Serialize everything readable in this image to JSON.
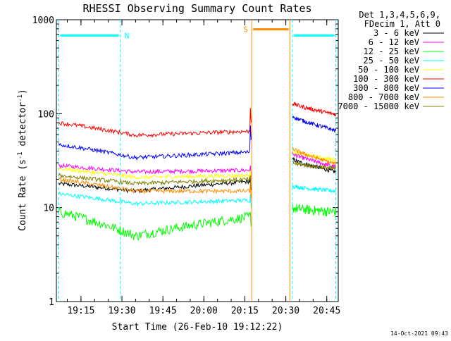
{
  "chart_data": {
    "type": "line",
    "title": "RHESSI Observing Summary Count Rates",
    "xlabel": "Start Time (26-Feb-10 19:12:22)",
    "ylabel": "Count Rate (s",
    "ylabel_sup1": "-1",
    "ylabel_mid": " detector",
    "ylabel_sup2": "-1",
    "ylabel_end": ")",
    "yscale": "log",
    "xlim_minutes": [
      19.1,
      20.82
    ],
    "ylim": [
      1,
      1000
    ],
    "x_ticks": [
      "19:15",
      "19:30",
      "19:45",
      "20:00",
      "20:15",
      "20:30",
      "20:45"
    ],
    "x_tick_values": [
      19.25,
      19.5,
      19.75,
      20.0,
      20.25,
      20.5,
      20.75
    ],
    "y_ticks": [
      "1",
      "10",
      "100",
      "1000"
    ],
    "y_tick_values": [
      1,
      10,
      100,
      1000
    ],
    "legend_header": [
      "Det 1,3,4,5,6,9,",
      "FDecim 1, Att 0"
    ],
    "legend_position": "right",
    "footer_date": "14-Oct-2021 09:43",
    "series": [
      {
        "name": "3 - 6 keV",
        "color": "#000000",
        "seg1": {
          "start": 18,
          "min": 15,
          "end": 19,
          "spike": 22
        },
        "seg2": {
          "start": 33,
          "end": 24
        }
      },
      {
        "name": "6 - 12 keV",
        "color": "#ff00ff",
        "seg1": {
          "start": 28,
          "min": 24,
          "end": 25,
          "spike": 28
        },
        "seg2": {
          "start": 38,
          "end": 27
        }
      },
      {
        "name": "12 - 25 keV",
        "color": "#00ff00",
        "seg1": {
          "start": 9,
          "min": 5,
          "end": 8,
          "spike": 9
        },
        "seg2": {
          "start": 10,
          "end": 9
        }
      },
      {
        "name": "25 - 50 keV",
        "color": "#00ffff",
        "seg1": {
          "start": 14,
          "min": 11,
          "end": 12,
          "spike": 14
        },
        "seg2": {
          "start": 17,
          "end": 15
        }
      },
      {
        "name": "50 - 100 keV",
        "color": "#ffff00",
        "seg1": {
          "start": 26,
          "min": 21,
          "end": 22,
          "spike": 25
        },
        "seg2": {
          "start": 40,
          "end": 32
        }
      },
      {
        "name": "100 - 300 keV",
        "color": "#ff0000",
        "seg1": {
          "start": 80,
          "min": 59,
          "end": 65,
          "spike": 115
        },
        "seg2": {
          "start": 130,
          "end": 98
        }
      },
      {
        "name": "300 - 800 keV",
        "color": "#0000ff",
        "seg1": {
          "start": 47,
          "min": 34,
          "end": 39,
          "spike": 75
        },
        "seg2": {
          "start": 95,
          "end": 66
        }
      },
      {
        "name": "800 - 7000 keV",
        "color": "#ff8c00",
        "seg1": {
          "start": 20,
          "min": 15,
          "end": 15,
          "spike": 18
        },
        "seg2": {
          "start": 43,
          "end": 29
        }
      },
      {
        "name": "7000 - 15000 keV",
        "color": "#808000",
        "seg1": {
          "start": 22,
          "min": 18,
          "end": 20,
          "spike": 22
        },
        "seg2": {
          "start": 30,
          "end": 26
        }
      }
    ],
    "annotations": [
      {
        "label": "N",
        "meaning": "night",
        "color": "#00ffff",
        "intervals": [
          [
            19.115,
            19.49
          ],
          [
            20.54,
            20.805
          ]
        ],
        "level": 680
      },
      {
        "label": "S",
        "meaning": "SAA",
        "color": "#ff8c00",
        "intervals": [
          [
            20.292,
            20.525
          ]
        ],
        "level": 790
      }
    ],
    "data_gap_minutes": [
      20.292,
      20.535
    ]
  }
}
